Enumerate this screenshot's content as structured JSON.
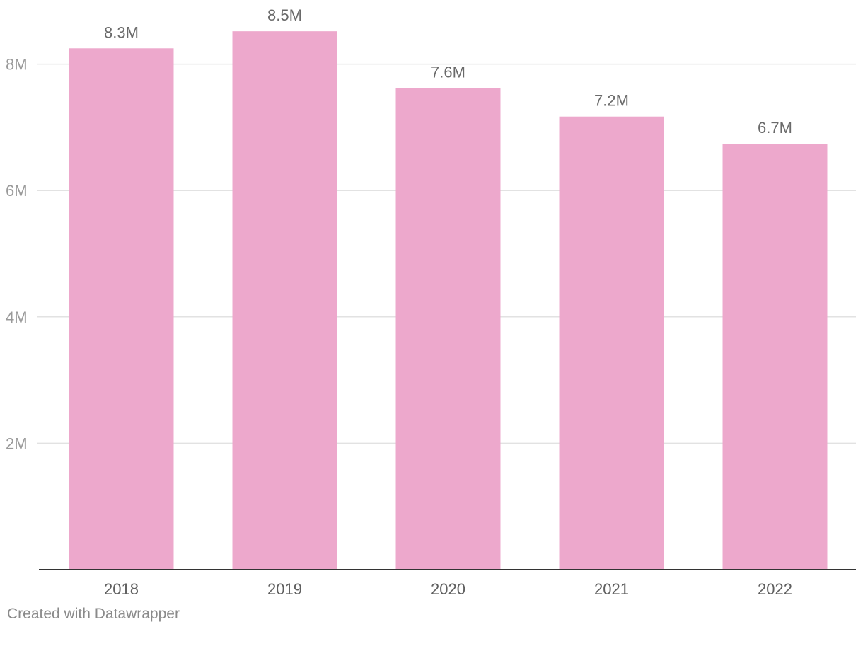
{
  "chart_data": {
    "type": "bar",
    "categories": [
      "2018",
      "2019",
      "2020",
      "2021",
      "2022"
    ],
    "values": [
      8250000,
      8520000,
      7620000,
      7170000,
      6740000
    ],
    "data_labels": [
      "8.3M",
      "8.5M",
      "7.6M",
      "7.2M",
      "6.7M"
    ],
    "y_ticks": [
      2000000,
      4000000,
      6000000,
      8000000
    ],
    "y_tick_labels": [
      "2M",
      "4M",
      "6M",
      "8M"
    ],
    "ylim": [
      0,
      8500000
    ],
    "title": "",
    "xlabel": "",
    "ylabel": "",
    "grid": true,
    "legend": "none",
    "colors": {
      "bar": "#eda8cc",
      "grid": "#e2e2e2",
      "baseline": "#333333",
      "tick_text": "#9a9a9a",
      "category_text": "#5f5f5f",
      "data_label_text": "#6a6a6a"
    }
  },
  "footer": {
    "credit": "Created with Datawrapper"
  }
}
